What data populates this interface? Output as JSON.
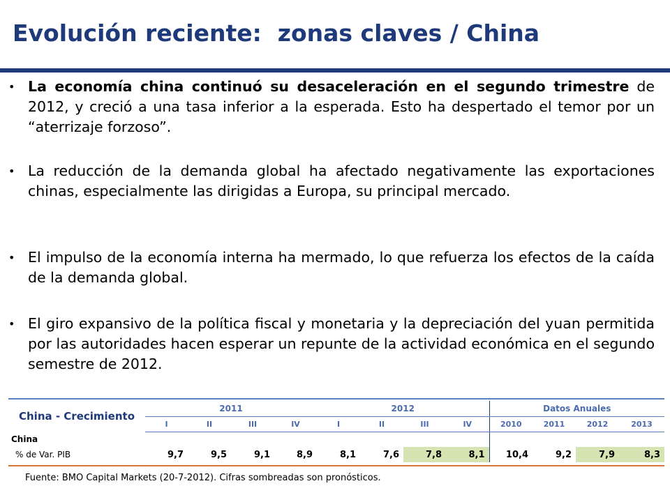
{
  "title": "Evolución reciente:  zonas claves / China",
  "bullets": [
    {
      "bold": "La economía china continuó su desaceleración en el segundo trimestre",
      "text": " de 2012, y creció a una tasa inferior a la esperada. Esto ha despertado el temor por un “aterrizaje forzoso”."
    },
    {
      "bold": "",
      "text": "La reducción de la demanda global ha afectado negativamente las exportaciones chinas, especialmente las dirigidas a Europa, su principal mercado."
    },
    {
      "bold": "",
      "text": "El impulso de la economía interna ha mermado, lo que refuerza los efectos de la caída de la demanda global."
    },
    {
      "bold": "",
      "text": " El giro expansivo de la política fiscal y monetaria y la depreciación del yuan permitida por las autoridades hacen esperar un repunte de la actividad económica en el segundo semestre de 2012."
    }
  ],
  "table": {
    "caption": "China - Crecimiento",
    "year_groups": [
      "2011",
      "2012",
      "Datos Anuales"
    ],
    "columns": [
      "I",
      "II",
      "III",
      "IV",
      "I",
      "II",
      "III",
      "IV",
      "2010",
      "2011",
      "2012",
      "2013"
    ],
    "section_label": "China",
    "row_label": "% de Var. PIB",
    "values": [
      "9,7",
      "9,5",
      "9,1",
      "8,9",
      "8,1",
      "7,6",
      "7,8",
      "8,1",
      "10,4",
      "9,2",
      "7,9",
      "8,3"
    ],
    "shaded": [
      false,
      false,
      false,
      false,
      false,
      false,
      true,
      true,
      false,
      false,
      true,
      true
    ],
    "shade_color": "#d6e4b4"
  },
  "source": "Fuente: BMO Capital Markets (20-7-2012). Cifras sombreadas son pronósticos.",
  "colors": {
    "title": "#1f3a7a",
    "accent_line": "#d8753a",
    "table_header": "#4a6bb0"
  }
}
